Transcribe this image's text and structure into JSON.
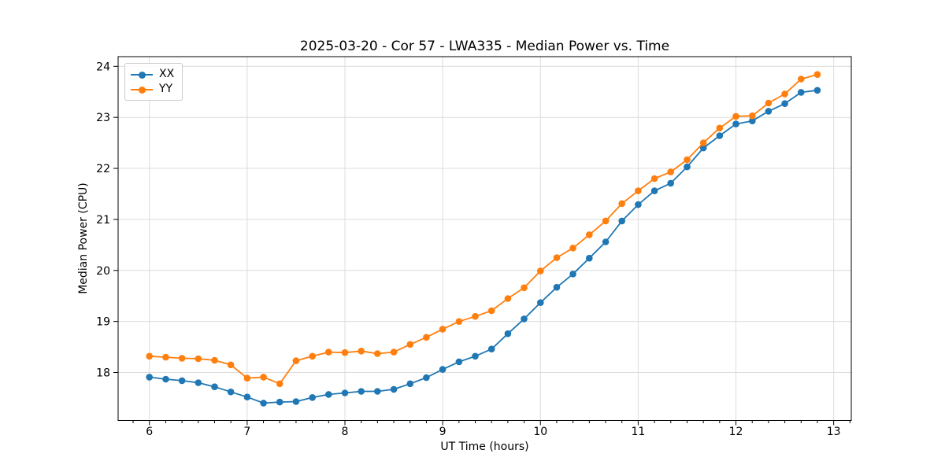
{
  "chart_data": {
    "type": "line",
    "title": "2025-03-20 - Cor 57 - LWA335 - Median Power vs. Time",
    "xlabel": "UT Time (hours)",
    "ylabel": "Median Power (CPU)",
    "xlim": [
      5.68,
      13.18
    ],
    "ylim": [
      17.06,
      24.19
    ],
    "xticks": [
      6,
      7,
      8,
      9,
      10,
      11,
      12,
      13
    ],
    "yticks": [
      18,
      19,
      20,
      21,
      22,
      23,
      24
    ],
    "x_minor_tick_step_hours": 0.1667,
    "grid": true,
    "grid_color": "#dcdcdc",
    "background": "#ffffff",
    "legend_position": "upper-left",
    "marker": "circle",
    "x": [
      6.0,
      6.167,
      6.333,
      6.5,
      6.667,
      6.833,
      7.0,
      7.167,
      7.333,
      7.5,
      7.667,
      7.833,
      8.0,
      8.167,
      8.333,
      8.5,
      8.667,
      8.833,
      9.0,
      9.167,
      9.333,
      9.5,
      9.667,
      9.833,
      10.0,
      10.167,
      10.333,
      10.5,
      10.667,
      10.833,
      11.0,
      11.167,
      11.333,
      11.5,
      11.667,
      11.833,
      12.0,
      12.167,
      12.333,
      12.5,
      12.667,
      12.833
    ],
    "series": [
      {
        "name": "XX",
        "color": "#1f77b4",
        "values": [
          17.91,
          17.87,
          17.84,
          17.8,
          17.72,
          17.62,
          17.52,
          17.4,
          17.42,
          17.43,
          17.51,
          17.57,
          17.6,
          17.63,
          17.63,
          17.67,
          17.78,
          17.9,
          18.06,
          18.21,
          18.32,
          18.46,
          18.76,
          19.05,
          19.37,
          19.67,
          19.93,
          20.24,
          20.56,
          20.97,
          21.29,
          21.56,
          21.71,
          22.03,
          22.4,
          22.64,
          22.87,
          22.93,
          23.12,
          23.27,
          23.49,
          23.53
        ]
      },
      {
        "name": "YY",
        "color": "#ff7f0e",
        "values": [
          18.32,
          18.3,
          18.28,
          18.27,
          18.24,
          18.15,
          17.89,
          17.91,
          17.78,
          18.23,
          18.32,
          18.4,
          18.39,
          18.42,
          18.37,
          18.4,
          18.55,
          18.69,
          18.85,
          19.0,
          19.1,
          19.21,
          19.45,
          19.66,
          19.99,
          20.25,
          20.44,
          20.7,
          20.97,
          21.31,
          21.56,
          21.8,
          21.93,
          22.17,
          22.5,
          22.79,
          23.02,
          23.03,
          23.28,
          23.46,
          23.75,
          23.84
        ]
      }
    ]
  }
}
